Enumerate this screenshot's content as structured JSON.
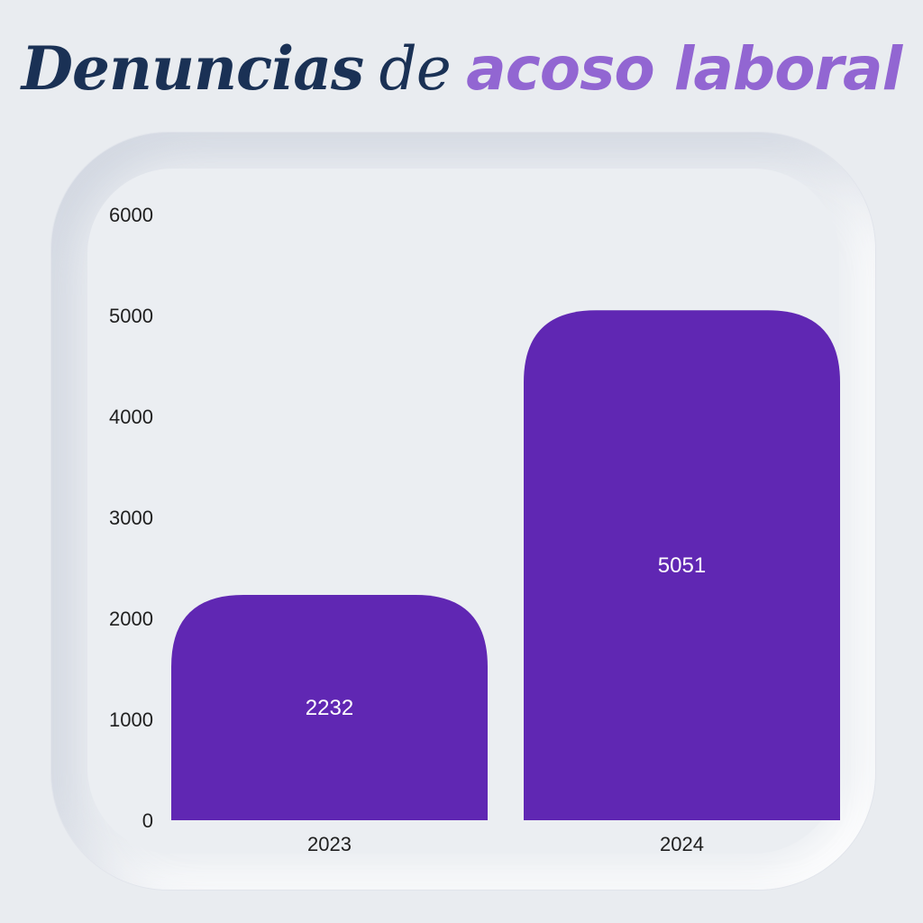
{
  "header": {
    "title_part1": "Denuncias",
    "title_part2": "de",
    "title_part3": "acoso laboral"
  },
  "colors": {
    "background": "#e9ecf0",
    "title_dark": "#1a3155",
    "title_accent": "#9266d2",
    "bar": "#6027b3",
    "bar_label": "#ffffff"
  },
  "chart_data": {
    "type": "bar",
    "title": "Denuncias de acoso laboral",
    "xlabel": "",
    "ylabel": "",
    "categories": [
      "2023",
      "2024"
    ],
    "values": [
      2232,
      5051
    ],
    "value_labels": [
      "2232",
      "5051"
    ],
    "ylim": [
      0,
      6000
    ],
    "yticks": [
      0,
      1000,
      2000,
      3000,
      4000,
      5000,
      6000
    ],
    "ytick_labels": [
      "0",
      "1000",
      "2000",
      "3000",
      "4000",
      "5000",
      "6000"
    ],
    "grid": false,
    "legend": "none"
  }
}
